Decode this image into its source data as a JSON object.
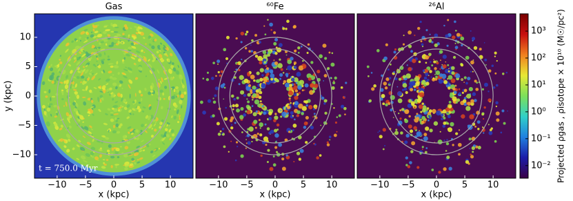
{
  "chart_data": [
    {
      "type": "image",
      "title": "Gas",
      "xlabel": "x  (kpc)",
      "ylabel": "y  (kpc)",
      "xlim": [
        -14,
        14
      ],
      "ylim": [
        -14,
        14
      ],
      "xticks": [
        {
          "value": -10,
          "label": "−10"
        },
        {
          "value": -5,
          "label": "−5"
        },
        0,
        5,
        10
      ],
      "yticks": [
        {
          "value": -10,
          "label": "−10"
        },
        {
          "value": -5,
          "label": "−5"
        },
        0,
        5,
        10
      ],
      "rings": [
        8,
        10
      ],
      "annotation": "t = 750.0 Myr",
      "background": "#2536b0"
    },
    {
      "type": "image",
      "title": "⁶⁰Fe",
      "xlabel": "x  (kpc)",
      "xlim": [
        -14,
        14
      ],
      "ylim": [
        -14,
        14
      ],
      "xticks": [
        {
          "value": -10,
          "label": "−10"
        },
        {
          "value": -5,
          "label": "−5"
        },
        0,
        5,
        10
      ],
      "rings": [
        8,
        10
      ],
      "background": "#4a0c52"
    },
    {
      "type": "image",
      "title": "²⁶Al",
      "xlabel": "x  (kpc)",
      "xlim": [
        -14,
        14
      ],
      "ylim": [
        -14,
        14
      ],
      "xticks": [
        {
          "value": -10,
          "label": "−10"
        },
        {
          "value": -5,
          "label": "−5"
        },
        0,
        5,
        10
      ],
      "rings": [
        8,
        10
      ],
      "background": "#4a0c52"
    }
  ],
  "colorbar": {
    "label": "Projected ρgas , ρisotope × 10¹⁰ (M☉/pc²)",
    "log": true,
    "clim": [
      0.0034,
      4400
    ],
    "ticks": [
      {
        "value": 0.01,
        "label": "10⁻²"
      },
      {
        "value": 0.1,
        "label": "10⁻¹"
      },
      {
        "value": 1,
        "label": "10⁰"
      },
      {
        "value": 10,
        "label": "10¹"
      },
      {
        "value": 100,
        "label": "10²"
      },
      {
        "value": 1000,
        "label": "10³"
      }
    ],
    "colors": [
      "#3a0046",
      "#1c1ca8",
      "#1f80e0",
      "#30d0c8",
      "#7ce05a",
      "#e8e834",
      "#f08020",
      "#c81010",
      "#780000"
    ]
  }
}
